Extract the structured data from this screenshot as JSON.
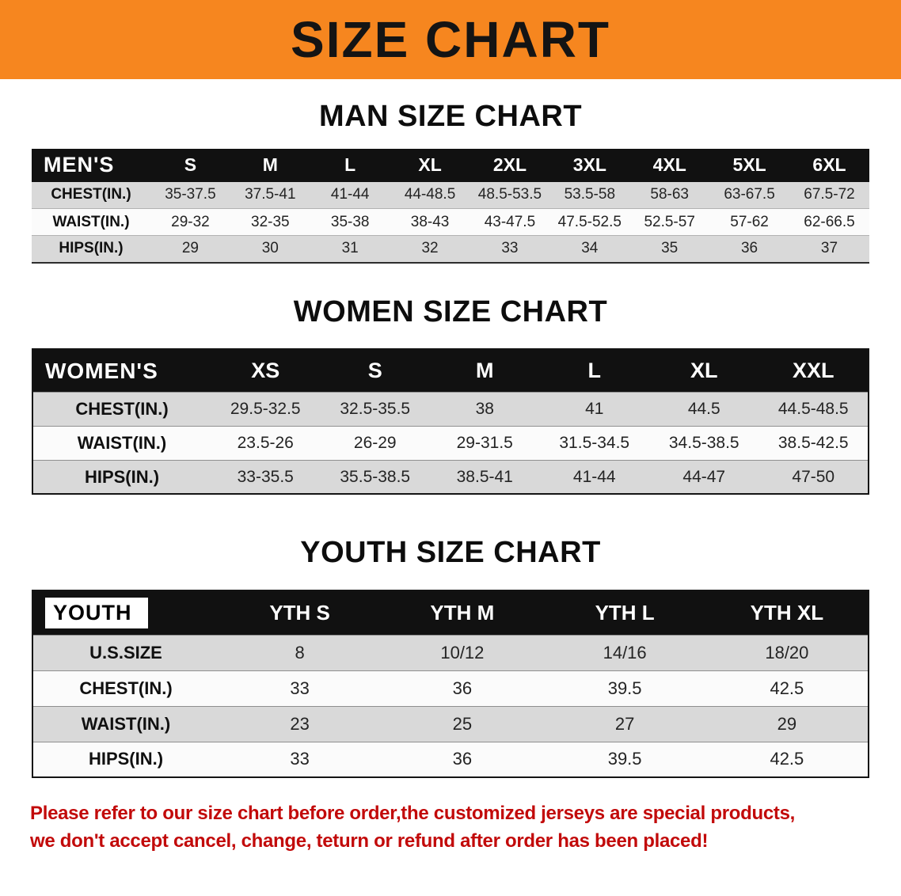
{
  "banner": {
    "title": "SIZE CHART"
  },
  "men": {
    "heading": "MAN SIZE CHART",
    "table": {
      "header": [
        "MEN'S",
        "S",
        "M",
        "L",
        "XL",
        "2XL",
        "3XL",
        "4XL",
        "5XL",
        "6XL"
      ],
      "rows": [
        [
          "CHEST(IN.)",
          "35-37.5",
          "37.5-41",
          "41-44",
          "44-48.5",
          "48.5-53.5",
          "53.5-58",
          "58-63",
          "63-67.5",
          "67.5-72"
        ],
        [
          "WAIST(IN.)",
          "29-32",
          "32-35",
          "35-38",
          "38-43",
          "43-47.5",
          "47.5-52.5",
          "52.5-57",
          "57-62",
          "62-66.5"
        ],
        [
          "HIPS(IN.)",
          "29",
          "30",
          "31",
          "32",
          "33",
          "34",
          "35",
          "36",
          "37"
        ]
      ]
    }
  },
  "women": {
    "heading": "WOMEN SIZE CHART",
    "table": {
      "header": [
        "WOMEN'S",
        "XS",
        "S",
        "M",
        "L",
        "XL",
        "XXL"
      ],
      "rows": [
        [
          "CHEST(IN.)",
          "29.5-32.5",
          "32.5-35.5",
          "38",
          "41",
          "44.5",
          "44.5-48.5"
        ],
        [
          "WAIST(IN.)",
          "23.5-26",
          "26-29",
          "29-31.5",
          "31.5-34.5",
          "34.5-38.5",
          "38.5-42.5"
        ],
        [
          "HIPS(IN.)",
          "33-35.5",
          "35.5-38.5",
          "38.5-41",
          "41-44",
          "44-47",
          "47-50"
        ]
      ]
    }
  },
  "youth": {
    "heading": "YOUTH SIZE CHART",
    "table": {
      "header": [
        "YOUTH",
        "YTH S",
        "YTH M",
        "YTH L",
        "YTH XL"
      ],
      "rows": [
        [
          "U.S.SIZE",
          "8",
          "10/12",
          "14/16",
          "18/20"
        ],
        [
          "CHEST(IN.)",
          "33",
          "36",
          "39.5",
          "42.5"
        ],
        [
          "WAIST(IN.)",
          "23",
          "25",
          "27",
          "29"
        ],
        [
          "HIPS(IN.)",
          "33",
          "36",
          "39.5",
          "42.5"
        ]
      ]
    }
  },
  "disclaimer": {
    "line1": "Please refer to our size chart before order,the customized jerseys are special products,",
    "line2": "we don't accept cancel, change, teturn or refund after order has been placed!"
  },
  "colors": {
    "banner_orange": "#F6861F",
    "header_black": "#111111",
    "row_shade": "#D9D9D9",
    "disclaimer_red": "#C20A0A"
  }
}
